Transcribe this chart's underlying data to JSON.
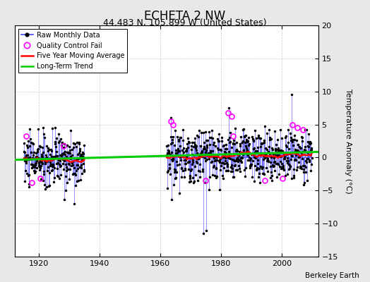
{
  "title": "ECHETA 2 NW",
  "subtitle": "44.483 N, 105.899 W (United States)",
  "ylabel": "Temperature Anomaly (°C)",
  "attribution": "Berkeley Earth",
  "ylim": [
    -15,
    20
  ],
  "yticks": [
    -15,
    -10,
    -5,
    0,
    5,
    10,
    15,
    20
  ],
  "xlim": [
    1912,
    2012
  ],
  "xticks": [
    1920,
    1940,
    1960,
    1980,
    2000
  ],
  "background_color": "#e8e8e8",
  "plot_background": "#ffffff",
  "raw_color": "#4444ff",
  "ma_color": "#ff0000",
  "trend_color": "#00cc00",
  "qc_color": "#ff00ff",
  "period1_start": 1915,
  "period1_end": 1935,
  "period2_start": 1962,
  "period2_end": 2010,
  "trend_x": [
    1912,
    2012
  ],
  "trend_y": [
    -0.35,
    0.85
  ]
}
